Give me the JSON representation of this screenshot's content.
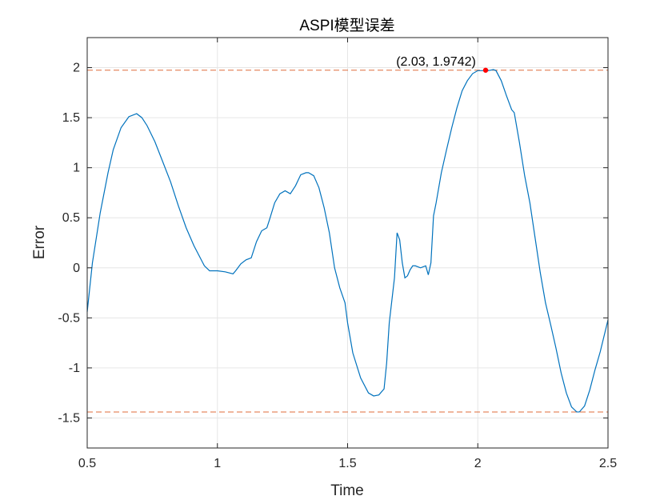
{
  "chart_data": {
    "type": "line",
    "title": "ASPI模型误差",
    "xlabel": "Time",
    "ylabel": "Error",
    "xlim": [
      0.5,
      2.5
    ],
    "ylim": [
      -1.8,
      2.3
    ],
    "xticks": [
      0.5,
      1,
      1.5,
      2,
      2.5
    ],
    "xtick_labels": [
      "0.5",
      "1",
      "1.5",
      "2",
      "2.5"
    ],
    "yticks": [
      -1.5,
      -1,
      -0.5,
      0,
      0.5,
      1,
      1.5,
      2
    ],
    "ytick_labels": [
      "-1.5",
      "-1",
      "-0.5",
      "0",
      "0.5",
      "1",
      "1.5",
      "2"
    ],
    "grid": true,
    "colors": {
      "line": "#0072BD",
      "reference": "#D95319",
      "marker": "#FF0000",
      "grid": "#E6E6E6"
    },
    "series": [
      {
        "x": [
          0.5,
          0.52,
          0.55,
          0.58,
          0.6,
          0.63,
          0.66,
          0.69,
          0.71,
          0.73,
          0.76,
          0.79,
          0.82,
          0.85,
          0.88,
          0.91,
          0.93,
          0.95,
          0.97,
          0.99,
          1.0,
          1.03,
          1.06,
          1.07,
          1.09,
          1.11,
          1.13,
          1.15,
          1.17,
          1.19,
          1.2,
          1.22,
          1.24,
          1.26,
          1.28,
          1.3,
          1.32,
          1.34,
          1.35,
          1.37,
          1.39,
          1.41,
          1.43,
          1.45,
          1.47,
          1.49,
          1.5,
          1.52,
          1.55,
          1.58,
          1.6,
          1.62,
          1.64,
          1.65,
          1.66,
          1.68,
          1.69,
          1.7,
          1.71,
          1.72,
          1.73,
          1.74,
          1.75,
          1.76,
          1.78,
          1.8,
          1.81,
          1.82,
          1.83,
          1.84,
          1.86,
          1.88,
          1.9,
          1.92,
          1.94,
          1.96,
          1.98,
          2.0,
          2.02,
          2.03,
          2.04,
          2.06,
          2.07,
          2.09,
          2.11,
          2.13,
          2.14,
          2.16,
          2.18,
          2.2,
          2.22,
          2.24,
          2.26,
          2.28,
          2.3,
          2.32,
          2.34,
          2.36,
          2.38,
          2.39,
          2.41,
          2.43,
          2.45,
          2.47,
          2.5
        ],
        "y": [
          -0.44,
          0.05,
          0.55,
          0.95,
          1.18,
          1.4,
          1.51,
          1.54,
          1.5,
          1.42,
          1.26,
          1.06,
          0.86,
          0.62,
          0.4,
          0.22,
          0.12,
          0.02,
          -0.03,
          -0.03,
          -0.03,
          -0.04,
          -0.06,
          -0.03,
          0.04,
          0.08,
          0.1,
          0.26,
          0.37,
          0.4,
          0.48,
          0.65,
          0.74,
          0.77,
          0.74,
          0.82,
          0.93,
          0.95,
          0.95,
          0.92,
          0.8,
          0.6,
          0.35,
          0.0,
          -0.2,
          -0.35,
          -0.55,
          -0.85,
          -1.1,
          -1.25,
          -1.28,
          -1.27,
          -1.21,
          -0.95,
          -0.55,
          -0.1,
          0.35,
          0.28,
          0.05,
          -0.1,
          -0.08,
          -0.02,
          0.02,
          0.02,
          0.0,
          0.02,
          -0.07,
          0.05,
          0.52,
          0.65,
          0.95,
          1.18,
          1.4,
          1.6,
          1.77,
          1.87,
          1.94,
          1.97,
          1.97,
          1.9742,
          1.97,
          1.98,
          1.97,
          1.87,
          1.72,
          1.58,
          1.55,
          1.25,
          0.92,
          0.65,
          0.3,
          -0.05,
          -0.35,
          -0.57,
          -0.8,
          -1.05,
          -1.25,
          -1.39,
          -1.44,
          -1.44,
          -1.38,
          -1.22,
          -1.02,
          -0.84,
          -0.52
        ]
      }
    ],
    "reference_lines": [
      {
        "axis": "y",
        "value": 1.9742,
        "style": "dashed"
      },
      {
        "axis": "y",
        "value": -1.44,
        "style": "dashed"
      }
    ],
    "marker": {
      "x": 2.03,
      "y": 1.9742,
      "label": "(2.03, 1.9742)"
    }
  }
}
